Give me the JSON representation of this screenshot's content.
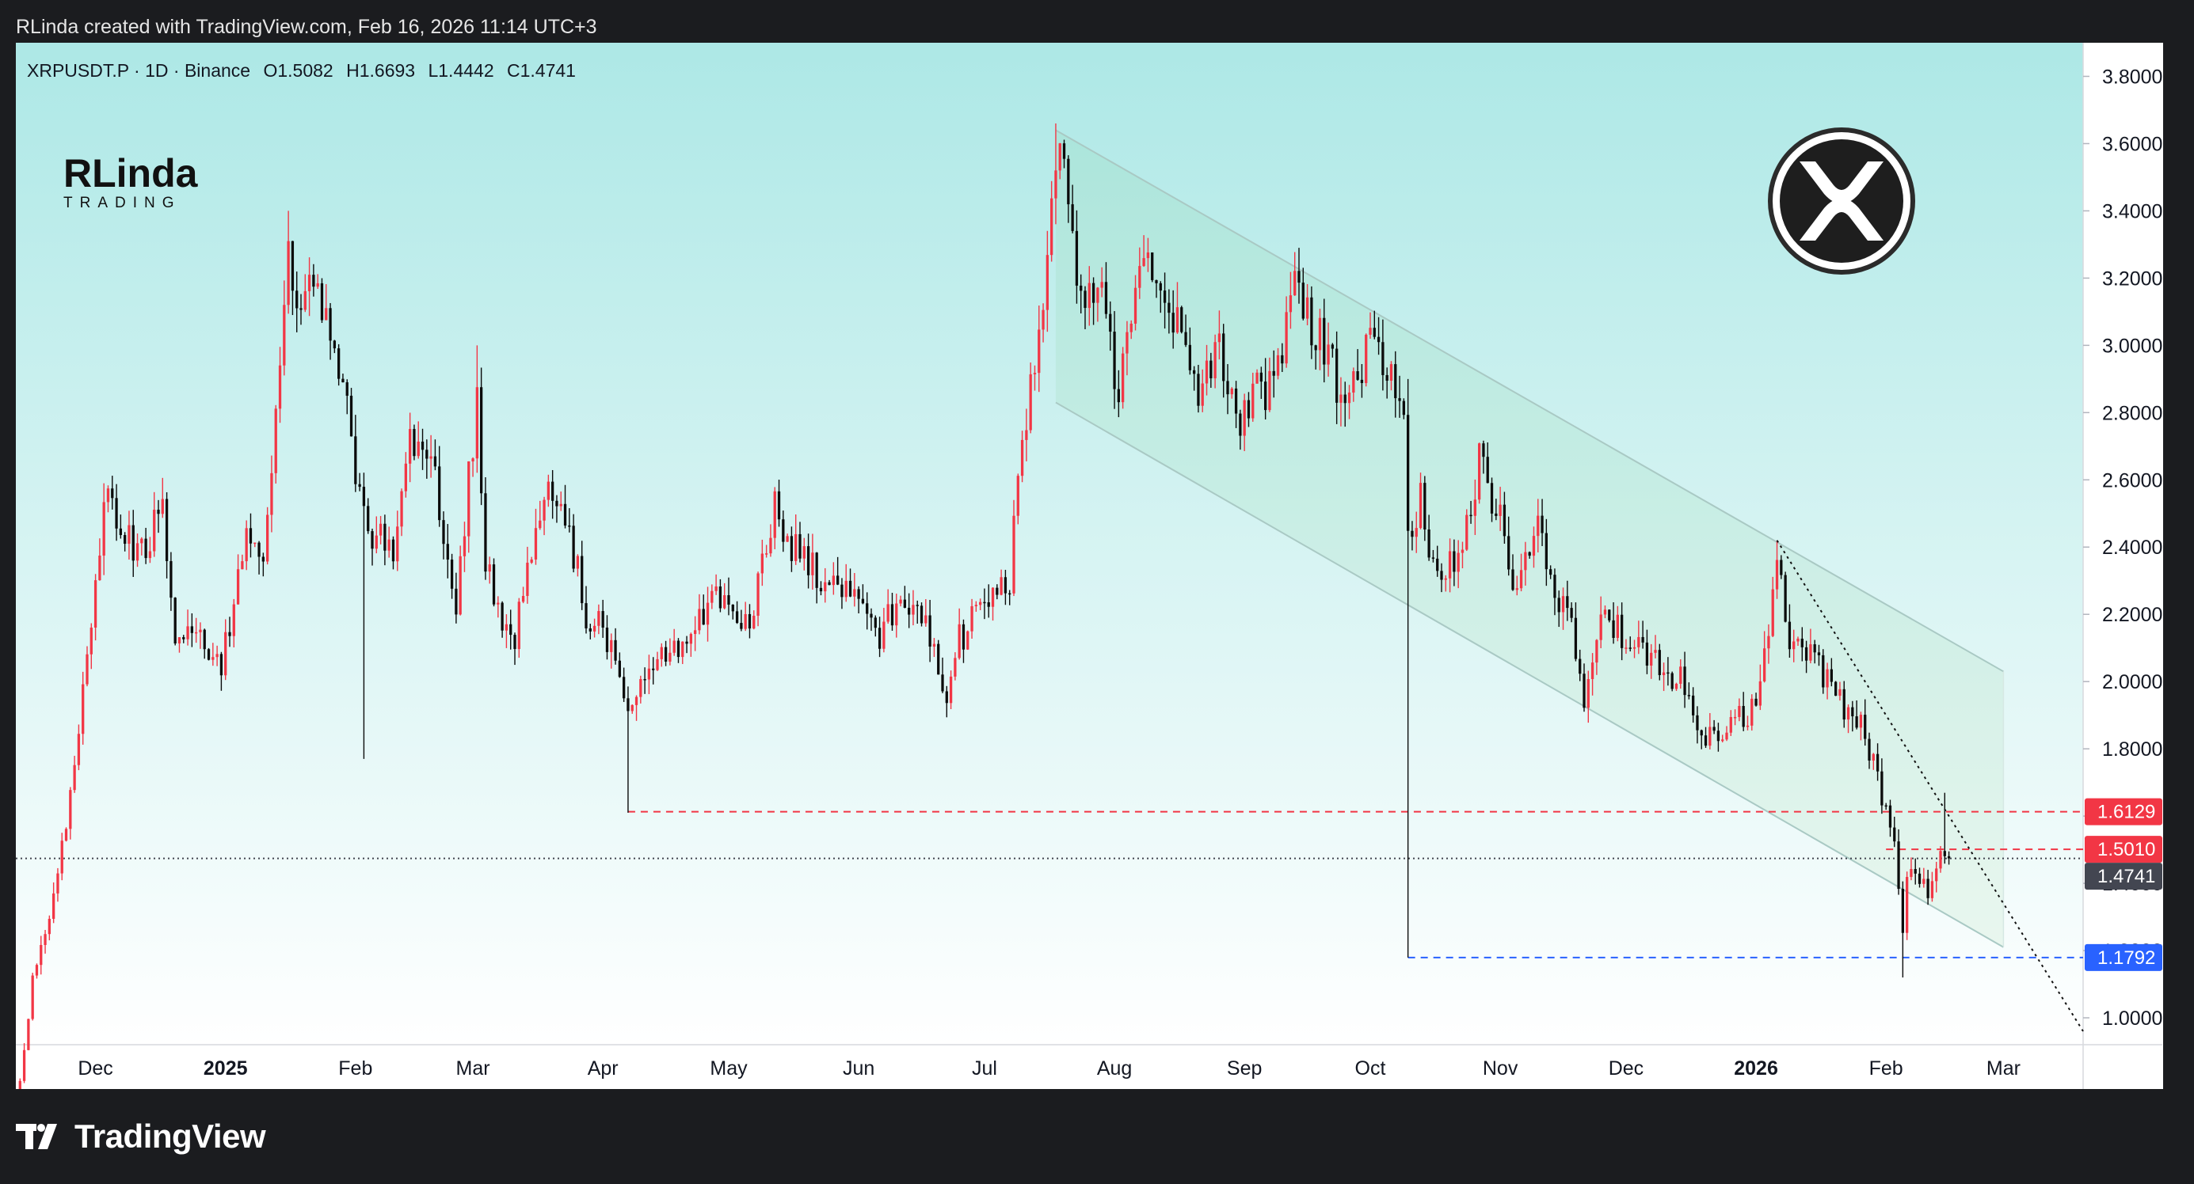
{
  "header": {
    "text": "RLinda created with TradingView.com, Feb 16, 2026 11:14 UTC+3"
  },
  "footer": {
    "brand": "TradingView"
  },
  "legend": {
    "symbol": "XRPUSDT.P · 1D · Binance",
    "open": "O1.5082",
    "high": "H1.6693",
    "low": "L1.4442",
    "close": "C1.4741"
  },
  "logo": {
    "line1": "RLinda",
    "line2": "TRADING"
  },
  "coin_icon": "xrp-icon",
  "colors": {
    "up": "#f23645",
    "down": "#0b0b0b",
    "bg_top": "#ade8e6",
    "bg_bottom": "#ffffff",
    "resistance": "#f23645",
    "support": "#2962ff",
    "current": "#434651"
  },
  "chart_data": {
    "type": "candlestick",
    "symbol": "XRPUSDT.P",
    "interval": "1D",
    "exchange": "Binance",
    "ylim": [
      0.92,
      3.9
    ],
    "y_ticks": [
      "1.0000",
      "1.2000",
      "1.4000",
      "1.6000",
      "1.8000",
      "2.0000",
      "2.2000",
      "2.4000",
      "2.6000",
      "2.8000",
      "3.0000",
      "3.2000",
      "3.4000",
      "3.6000",
      "3.8000"
    ],
    "x_range": [
      "2024-11-12",
      "2026-03-20"
    ],
    "x_ticks": [
      {
        "date": "2024-12-01",
        "label": "Dec",
        "bold": false
      },
      {
        "date": "2025-01-01",
        "label": "2025",
        "bold": true
      },
      {
        "date": "2025-02-01",
        "label": "Feb",
        "bold": false
      },
      {
        "date": "2025-03-01",
        "label": "Mar",
        "bold": false
      },
      {
        "date": "2025-04-01",
        "label": "Apr",
        "bold": false
      },
      {
        "date": "2025-05-01",
        "label": "May",
        "bold": false
      },
      {
        "date": "2025-06-01",
        "label": "Jun",
        "bold": false
      },
      {
        "date": "2025-07-01",
        "label": "Jul",
        "bold": false
      },
      {
        "date": "2025-08-01",
        "label": "Aug",
        "bold": false
      },
      {
        "date": "2025-09-01",
        "label": "Sep",
        "bold": false
      },
      {
        "date": "2025-10-01",
        "label": "Oct",
        "bold": false
      },
      {
        "date": "2025-11-01",
        "label": "Nov",
        "bold": false
      },
      {
        "date": "2025-12-01",
        "label": "Dec",
        "bold": false
      },
      {
        "date": "2026-01-01",
        "label": "2026",
        "bold": true
      },
      {
        "date": "2026-02-01",
        "label": "Feb",
        "bold": false
      },
      {
        "date": "2026-03-01",
        "label": "Mar",
        "bold": false
      }
    ],
    "price_labels": [
      {
        "value": 1.6129,
        "text": "1.6129",
        "kind": "resistance"
      },
      {
        "value": 1.501,
        "text": "1.5010",
        "kind": "resistance"
      },
      {
        "value": 1.4741,
        "text": "1.4741",
        "kind": "current"
      },
      {
        "value": 1.1792,
        "text": "1.1792",
        "kind": "support"
      }
    ],
    "levels": [
      {
        "name": "resistance-1",
        "value": 1.6129,
        "from": "2025-04-07",
        "to": "2026-03-20",
        "style": "dashed",
        "color": "#f23645"
      },
      {
        "name": "resistance-2",
        "value": 1.501,
        "from": "2026-02-01",
        "to": "2026-03-20",
        "style": "dashed",
        "color": "#f23645"
      },
      {
        "name": "support",
        "value": 1.1792,
        "from": "2025-10-10",
        "to": "2026-03-20",
        "style": "dashed",
        "color": "#2962ff"
      },
      {
        "name": "current-price",
        "value": 1.4741,
        "from": "2024-11-12",
        "to": "2026-03-20",
        "style": "dotted",
        "color": "#434651"
      }
    ],
    "crash_wick": {
      "date": "2025-10-10",
      "high": 2.9,
      "low": 1.1792
    },
    "channel": {
      "upper": [
        {
          "date": "2025-07-18",
          "value": 3.64
        },
        {
          "date": "2026-03-01",
          "value": 2.03
        }
      ],
      "lower": [
        {
          "date": "2025-07-18",
          "value": 2.83
        },
        {
          "date": "2026-03-01",
          "value": 1.21
        }
      ]
    },
    "trendline": [
      {
        "date": "2026-01-06",
        "value": 2.42
      },
      {
        "date": "2026-03-20",
        "value": 0.96
      }
    ],
    "anchors": [
      {
        "date": "2024-11-12",
        "close": 0.72
      },
      {
        "date": "2024-11-16",
        "close": 1.12
      },
      {
        "date": "2024-11-22",
        "close": 1.4
      },
      {
        "date": "2024-11-28",
        "close": 1.95
      },
      {
        "date": "2024-12-03",
        "close": 2.55
      },
      {
        "date": "2024-12-07",
        "close": 2.45
      },
      {
        "date": "2024-12-12",
        "close": 2.38
      },
      {
        "date": "2024-12-17",
        "close": 2.55
      },
      {
        "date": "2024-12-20",
        "close": 2.15
      },
      {
        "date": "2024-12-26",
        "close": 2.15
      },
      {
        "date": "2024-12-31",
        "close": 2.05
      },
      {
        "date": "2025-01-06",
        "close": 2.4
      },
      {
        "date": "2025-01-10",
        "close": 2.35
      },
      {
        "date": "2025-01-16",
        "close": 3.25
      },
      {
        "date": "2025-01-19",
        "close": 3.1
      },
      {
        "date": "2025-01-22",
        "close": 3.15
      },
      {
        "date": "2025-01-27",
        "close": 3.05
      },
      {
        "date": "2025-02-02",
        "close": 2.55
      },
      {
        "date": "2025-02-04",
        "close": 2.45
      },
      {
        "date": "2025-02-10",
        "close": 2.4
      },
      {
        "date": "2025-02-14",
        "close": 2.75
      },
      {
        "date": "2025-02-20",
        "close": 2.6
      },
      {
        "date": "2025-02-25",
        "close": 2.25
      },
      {
        "date": "2025-03-02",
        "close": 2.85
      },
      {
        "date": "2025-03-04",
        "close": 2.35
      },
      {
        "date": "2025-03-10",
        "close": 2.1
      },
      {
        "date": "2025-03-19",
        "close": 2.55
      },
      {
        "date": "2025-03-24",
        "close": 2.45
      },
      {
        "date": "2025-03-28",
        "close": 2.2
      },
      {
        "date": "2025-04-04",
        "close": 2.1
      },
      {
        "date": "2025-04-07",
        "close": 1.87
      },
      {
        "date": "2025-04-10",
        "close": 2.0
      },
      {
        "date": "2025-04-22",
        "close": 2.15
      },
      {
        "date": "2025-04-27",
        "close": 2.25
      },
      {
        "date": "2025-05-06",
        "close": 2.15
      },
      {
        "date": "2025-05-12",
        "close": 2.55
      },
      {
        "date": "2025-05-14",
        "close": 2.45
      },
      {
        "date": "2025-05-19",
        "close": 2.35
      },
      {
        "date": "2025-05-26",
        "close": 2.3
      },
      {
        "date": "2025-06-02",
        "close": 2.2
      },
      {
        "date": "2025-06-06",
        "close": 2.1
      },
      {
        "date": "2025-06-11",
        "close": 2.3
      },
      {
        "date": "2025-06-17",
        "close": 2.15
      },
      {
        "date": "2025-06-22",
        "close": 1.95
      },
      {
        "date": "2025-06-25",
        "close": 2.12
      },
      {
        "date": "2025-07-02",
        "close": 2.25
      },
      {
        "date": "2025-07-07",
        "close": 2.3
      },
      {
        "date": "2025-07-10",
        "close": 2.75
      },
      {
        "date": "2025-07-13",
        "close": 2.95
      },
      {
        "date": "2025-07-17",
        "close": 3.4
      },
      {
        "date": "2025-07-18",
        "close": 3.55
      },
      {
        "date": "2025-07-21",
        "close": 3.5
      },
      {
        "date": "2025-07-24",
        "close": 3.1
      },
      {
        "date": "2025-07-28",
        "close": 3.2
      },
      {
        "date": "2025-08-02",
        "close": 2.85
      },
      {
        "date": "2025-08-08",
        "close": 3.3
      },
      {
        "date": "2025-08-12",
        "close": 3.15
      },
      {
        "date": "2025-08-16",
        "close": 3.05
      },
      {
        "date": "2025-08-20",
        "close": 2.85
      },
      {
        "date": "2025-08-26",
        "close": 3.0
      },
      {
        "date": "2025-08-31",
        "close": 2.8
      },
      {
        "date": "2025-09-08",
        "close": 2.9
      },
      {
        "date": "2025-09-13",
        "close": 3.15
      },
      {
        "date": "2025-09-20",
        "close": 3.0
      },
      {
        "date": "2025-09-25",
        "close": 2.8
      },
      {
        "date": "2025-10-01",
        "close": 3.0
      },
      {
        "date": "2025-10-06",
        "close": 2.95
      },
      {
        "date": "2025-10-09",
        "close": 2.8
      },
      {
        "date": "2025-10-10",
        "close": 2.4
      },
      {
        "date": "2025-10-13",
        "close": 2.55
      },
      {
        "date": "2025-10-17",
        "close": 2.3
      },
      {
        "date": "2025-10-22",
        "close": 2.4
      },
      {
        "date": "2025-10-27",
        "close": 2.65
      },
      {
        "date": "2025-11-01",
        "close": 2.5
      },
      {
        "date": "2025-11-04",
        "close": 2.25
      },
      {
        "date": "2025-11-10",
        "close": 2.5
      },
      {
        "date": "2025-11-14",
        "close": 2.25
      },
      {
        "date": "2025-11-18",
        "close": 2.15
      },
      {
        "date": "2025-11-21",
        "close": 1.95
      },
      {
        "date": "2025-11-26",
        "close": 2.2
      },
      {
        "date": "2025-12-02",
        "close": 2.1
      },
      {
        "date": "2025-12-08",
        "close": 2.05
      },
      {
        "date": "2025-12-14",
        "close": 2.0
      },
      {
        "date": "2025-12-18",
        "close": 1.85
      },
      {
        "date": "2025-12-26",
        "close": 1.85
      },
      {
        "date": "2026-01-01",
        "close": 1.95
      },
      {
        "date": "2026-01-06",
        "close": 2.35
      },
      {
        "date": "2026-01-09",
        "close": 2.1
      },
      {
        "date": "2026-01-14",
        "close": 2.1
      },
      {
        "date": "2026-01-20",
        "close": 1.95
      },
      {
        "date": "2026-01-26",
        "close": 1.9
      },
      {
        "date": "2026-01-31",
        "close": 1.65
      },
      {
        "date": "2026-02-03",
        "close": 1.55
      },
      {
        "date": "2026-02-05",
        "close": 1.25
      },
      {
        "date": "2026-02-06",
        "close": 1.4
      },
      {
        "date": "2026-02-08",
        "close": 1.42
      },
      {
        "date": "2026-02-11",
        "close": 1.37
      },
      {
        "date": "2026-02-14",
        "close": 1.5
      },
      {
        "date": "2026-02-16",
        "close": 1.4741
      }
    ],
    "extreme_wicks": [
      {
        "date": "2025-01-16",
        "high": 3.4
      },
      {
        "date": "2025-02-03",
        "low": 1.77
      },
      {
        "date": "2025-03-02",
        "high": 3.0
      },
      {
        "date": "2025-04-07",
        "low": 1.61
      },
      {
        "date": "2025-07-18",
        "high": 3.66
      },
      {
        "date": "2025-10-27",
        "high": 2.7
      },
      {
        "date": "2026-01-06",
        "high": 2.42
      },
      {
        "date": "2026-02-05",
        "low": 1.12
      },
      {
        "date": "2026-02-15",
        "high": 1.6693
      }
    ]
  }
}
